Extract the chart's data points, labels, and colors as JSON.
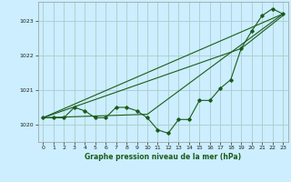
{
  "title": "Graphe pression niveau de la mer (hPa)",
  "background_color": "#cceeff",
  "grid_color": "#aacccc",
  "line_color": "#1a5c1a",
  "marker_color": "#1a5c1a",
  "xlim": [
    -0.5,
    23.5
  ],
  "ylim": [
    1019.5,
    1023.55
  ],
  "yticks": [
    1020,
    1021,
    1022,
    1023
  ],
  "xticks": [
    0,
    1,
    2,
    3,
    4,
    5,
    6,
    7,
    8,
    9,
    10,
    11,
    12,
    13,
    14,
    15,
    16,
    17,
    18,
    19,
    20,
    21,
    22,
    23
  ],
  "series1": [
    1020.2,
    1020.2,
    1020.2,
    1020.5,
    1020.4,
    1020.2,
    1020.2,
    1020.5,
    1020.5,
    1020.4,
    1020.2,
    1019.85,
    1019.75,
    1020.15,
    1020.15,
    1020.7,
    1020.7,
    1021.05,
    1021.3,
    1022.2,
    1022.7,
    1023.15,
    1023.35,
    1023.2
  ],
  "series2_x": [
    0,
    23
  ],
  "series2_y": [
    1020.2,
    1023.2
  ],
  "series3_x": [
    0,
    10,
    23
  ],
  "series3_y": [
    1020.2,
    1020.3,
    1023.2
  ],
  "series4_x": [
    0,
    19,
    23
  ],
  "series4_y": [
    1020.2,
    1022.2,
    1023.15
  ]
}
